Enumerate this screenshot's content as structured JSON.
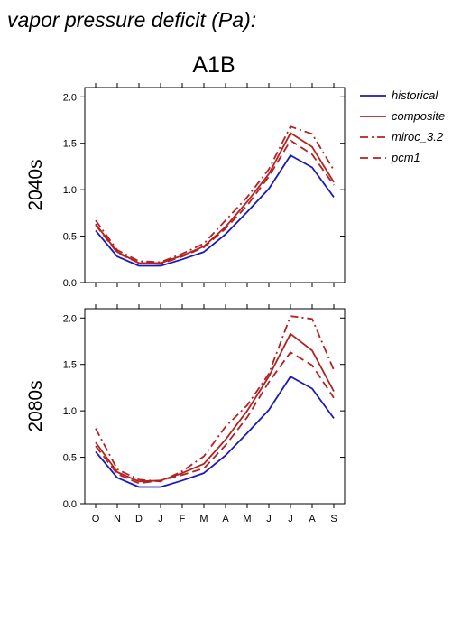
{
  "figure": {
    "title": "vapor pressure deficit (Pa):",
    "scenario": "A1B"
  },
  "chart_data": [
    {
      "type": "line",
      "row_label": "2040s",
      "categories": [
        "O",
        "N",
        "D",
        "J",
        "F",
        "M",
        "A",
        "M",
        "J",
        "J",
        "A",
        "S"
      ],
      "ylim": [
        0,
        2.1
      ],
      "yticks": [
        "0.0",
        "0.5",
        "1.0",
        "1.5",
        "2.0"
      ],
      "grid": false,
      "legend": "right",
      "series": [
        {
          "name": "historical",
          "color": "#1a1ab8",
          "dash": "solid",
          "values": [
            0.56,
            0.28,
            0.18,
            0.18,
            0.25,
            0.33,
            0.52,
            0.76,
            1.01,
            1.37,
            1.24,
            0.92
          ]
        },
        {
          "name": "composite",
          "color": "#b22222",
          "dash": "solid",
          "values": [
            0.63,
            0.33,
            0.21,
            0.21,
            0.29,
            0.39,
            0.6,
            0.87,
            1.17,
            1.61,
            1.46,
            1.08
          ]
        },
        {
          "name": "miroc_3.2",
          "color": "#b22222",
          "dash": "dashdot",
          "values": [
            0.67,
            0.35,
            0.23,
            0.22,
            0.31,
            0.42,
            0.67,
            0.92,
            1.22,
            1.68,
            1.6,
            1.21
          ]
        },
        {
          "name": "pcm1",
          "color": "#b22222",
          "dash": "dash",
          "values": [
            0.62,
            0.32,
            0.21,
            0.2,
            0.28,
            0.38,
            0.58,
            0.83,
            1.14,
            1.53,
            1.38,
            1.05
          ]
        }
      ]
    },
    {
      "type": "line",
      "row_label": "2080s",
      "categories": [
        "O",
        "N",
        "D",
        "J",
        "F",
        "M",
        "A",
        "M",
        "J",
        "J",
        "A",
        "S"
      ],
      "xlabels": [
        "O",
        "N",
        "D",
        "J",
        "F",
        "M",
        "A",
        "M",
        "J",
        "J",
        "A",
        "S"
      ],
      "ylim": [
        0,
        2.1
      ],
      "yticks": [
        "0.0",
        "0.5",
        "1.0",
        "1.5",
        "2.0"
      ],
      "grid": false,
      "series": [
        {
          "name": "historical",
          "color": "#1a1ab8",
          "dash": "solid",
          "values": [
            0.56,
            0.28,
            0.18,
            0.18,
            0.25,
            0.33,
            0.52,
            0.76,
            1.01,
            1.37,
            1.24,
            0.92
          ]
        },
        {
          "name": "composite",
          "color": "#b22222",
          "dash": "solid",
          "values": [
            0.66,
            0.34,
            0.24,
            0.25,
            0.33,
            0.43,
            0.69,
            1.0,
            1.37,
            1.83,
            1.65,
            1.21
          ]
        },
        {
          "name": "miroc_3.2",
          "color": "#b22222",
          "dash": "dashdot",
          "values": [
            0.81,
            0.37,
            0.26,
            0.24,
            0.35,
            0.51,
            0.83,
            1.06,
            1.4,
            2.02,
            1.99,
            1.44
          ]
        },
        {
          "name": "pcm1",
          "color": "#b22222",
          "dash": "dash",
          "values": [
            0.62,
            0.32,
            0.22,
            0.25,
            0.31,
            0.38,
            0.63,
            0.93,
            1.31,
            1.63,
            1.49,
            1.14
          ]
        }
      ]
    }
  ],
  "legend": [
    {
      "label": "historical",
      "color": "#1a1ab8",
      "dash": "solid"
    },
    {
      "label": "composite",
      "color": "#b22222",
      "dash": "solid"
    },
    {
      "label": "miroc_3.2",
      "color": "#b22222",
      "dash": "dashdot"
    },
    {
      "label": "pcm1",
      "color": "#b22222",
      "dash": "dash"
    }
  ]
}
